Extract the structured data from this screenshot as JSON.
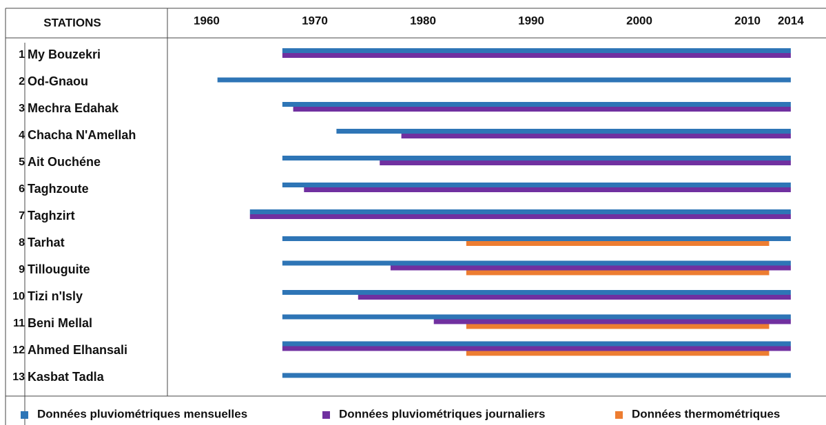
{
  "chart_data": {
    "type": "timeline",
    "category_header": "STATIONS",
    "station_numbers": [
      1,
      2,
      3,
      4,
      5,
      6,
      7,
      8,
      9,
      10,
      11,
      12,
      13
    ],
    "categories": [
      "My Bouzekri",
      "Od-Gnaou",
      "Mechra Edahak",
      "Chacha N'Amellah",
      "Ait Ouchéne",
      "Taghzoute",
      "Taghzirt",
      "Tarhat",
      "Tillouguite",
      "Tizi n'Isly",
      "Beni Mellal",
      "Ahmed Elhansali",
      "Kasbat Tadla"
    ],
    "xlim": [
      1956.5,
      2017
    ],
    "xticks": [
      1960,
      1970,
      1980,
      1990,
      2000,
      2010,
      2014
    ],
    "legend": "bottom",
    "series": [
      {
        "name": "Données pluviométriques mensuelles",
        "color": "#2e75b6",
        "values": [
          [
            1967,
            2014
          ],
          [
            1961,
            2014
          ],
          [
            1967,
            2014
          ],
          [
            1972,
            2014
          ],
          [
            1967,
            2014
          ],
          [
            1967,
            2014
          ],
          [
            1964,
            2014
          ],
          [
            1967,
            2014
          ],
          [
            1967,
            2014
          ],
          [
            1967,
            2014
          ],
          [
            1967,
            2014
          ],
          [
            1967,
            2014
          ],
          [
            1967,
            2014
          ]
        ]
      },
      {
        "name": "Données pluviométriques journaliers",
        "color": "#7030a0",
        "values": [
          [
            1967,
            2014
          ],
          null,
          [
            1968,
            2014
          ],
          [
            1978,
            2014
          ],
          [
            1976,
            2014
          ],
          [
            1969,
            2014
          ],
          [
            1964,
            2014
          ],
          null,
          [
            1977,
            2014
          ],
          [
            1974,
            2014
          ],
          [
            1981,
            2014
          ],
          [
            1967,
            2014
          ],
          null
        ]
      },
      {
        "name": "Données thermométriques",
        "color": "#ed7d31",
        "values": [
          null,
          null,
          null,
          null,
          null,
          null,
          null,
          [
            1984,
            2012
          ],
          [
            1984,
            2012
          ],
          null,
          [
            1984,
            2012
          ],
          [
            1984,
            2012
          ],
          null
        ]
      }
    ]
  }
}
